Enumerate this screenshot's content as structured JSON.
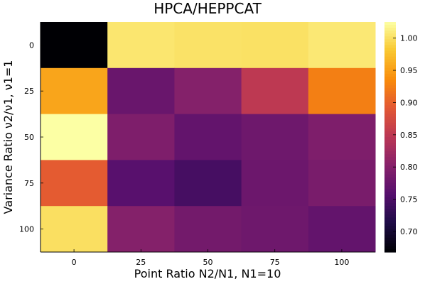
{
  "chart_data": {
    "type": "heatmap",
    "title": "HPCA/HEPPCAT",
    "xlabel": "Point Ratio N2/N1, N1=10",
    "ylabel": "Variance Ratio ν2/ν1, ν1=1",
    "x_categories": [
      "0",
      "25",
      "50",
      "75",
      "100"
    ],
    "y_categories": [
      "0",
      "25",
      "50",
      "75",
      "100"
    ],
    "values": [
      [
        0.668,
        1.005,
        1.002,
        1.001,
        1.007
      ],
      [
        0.955,
        0.775,
        0.8,
        0.85,
        0.925
      ],
      [
        1.025,
        0.795,
        0.77,
        0.78,
        0.795
      ],
      [
        0.895,
        0.76,
        0.745,
        0.778,
        0.79
      ],
      [
        1.0,
        0.8,
        0.785,
        0.78,
        0.77
      ]
    ],
    "colorbar": {
      "colormap": "inferno",
      "range": [
        0.668,
        1.025
      ],
      "ticks": [
        "0.70",
        "0.75",
        "0.80",
        "0.85",
        "0.90",
        "0.95",
        "1.00"
      ],
      "tick_values": [
        0.7,
        0.75,
        0.8,
        0.85,
        0.9,
        0.95,
        1.0
      ]
    },
    "grid": false,
    "legend": "none"
  }
}
